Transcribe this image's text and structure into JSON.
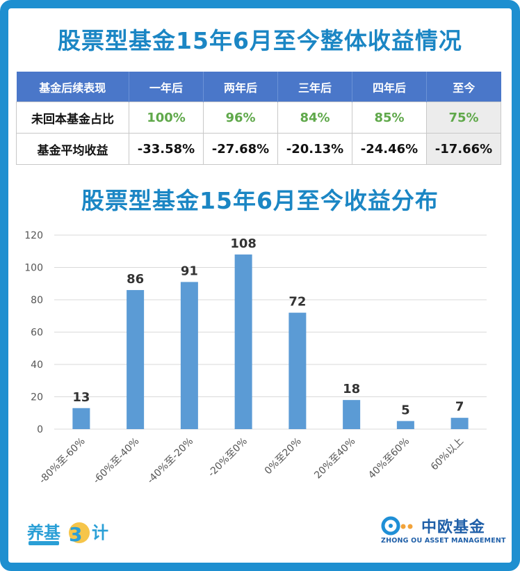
{
  "main_title": "股票型基金15年6月至今整体收益情况",
  "table": {
    "headers": [
      "基金后续表现",
      "一年后",
      "两年后",
      "三年后",
      "四年后",
      "至今"
    ],
    "rows": [
      {
        "label": "未回本基金占比",
        "cells": [
          "100%",
          "96%",
          "84%",
          "85%",
          "75%"
        ]
      },
      {
        "label": "基金平均收益",
        "cells": [
          "-33.58%",
          "-27.68%",
          "-20.13%",
          "-24.46%",
          "-17.66%"
        ]
      }
    ]
  },
  "colors": {
    "title": "#1b86c4",
    "header_bg": "#4a77c9",
    "bar": "#5b9bd5",
    "green_text": "#5fa84a",
    "frame": "#1e8fd0"
  },
  "chart_data": {
    "type": "bar",
    "title": "股票型基金15年6月至今收益分布",
    "categories": [
      "-80%至-60%",
      "-60%至-40%",
      "-40%至-20%",
      "-20%至0%",
      "0%至20%",
      "20%至40%",
      "40%至60%",
      "60%以上"
    ],
    "values": [
      13,
      86,
      91,
      108,
      72,
      18,
      5,
      7
    ],
    "yticks": [
      0,
      20,
      40,
      60,
      80,
      100,
      120
    ],
    "ylim": [
      0,
      120
    ],
    "grid": true,
    "legend": "none"
  },
  "branding": {
    "left_logo_text": "养基30计",
    "right_logo_cn": "中欧基金",
    "right_logo_en": "ZHONG OU ASSET MANAGEMENT"
  }
}
